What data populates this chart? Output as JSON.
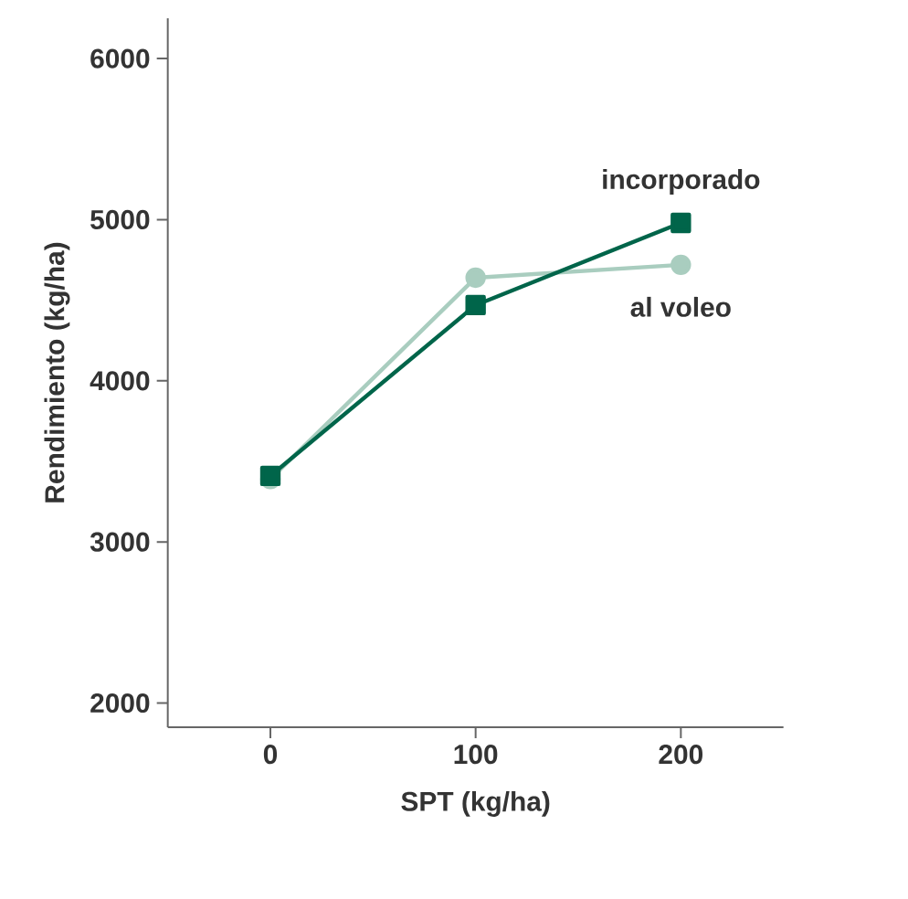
{
  "chart_data": {
    "type": "line",
    "xlabel": "SPT (kg/ha)",
    "ylabel": "Rendimiento (kg/ha)",
    "x": [
      0,
      100,
      200
    ],
    "series": [
      {
        "name": "al voleo",
        "color": "#a9cdbf",
        "values": [
          3390,
          4640,
          4720
        ],
        "marker": "circle"
      },
      {
        "name": "incorporado",
        "color": "#00654a",
        "values": [
          3410,
          4470,
          4980
        ],
        "marker": "square"
      }
    ],
    "xlim": [
      -50,
      250
    ],
    "ylim": [
      1850,
      6250
    ],
    "xticks": [
      0,
      100,
      200
    ],
    "yticks": [
      2000,
      3000,
      4000,
      5000,
      6000
    ],
    "grid": false,
    "line_style": "solid"
  }
}
